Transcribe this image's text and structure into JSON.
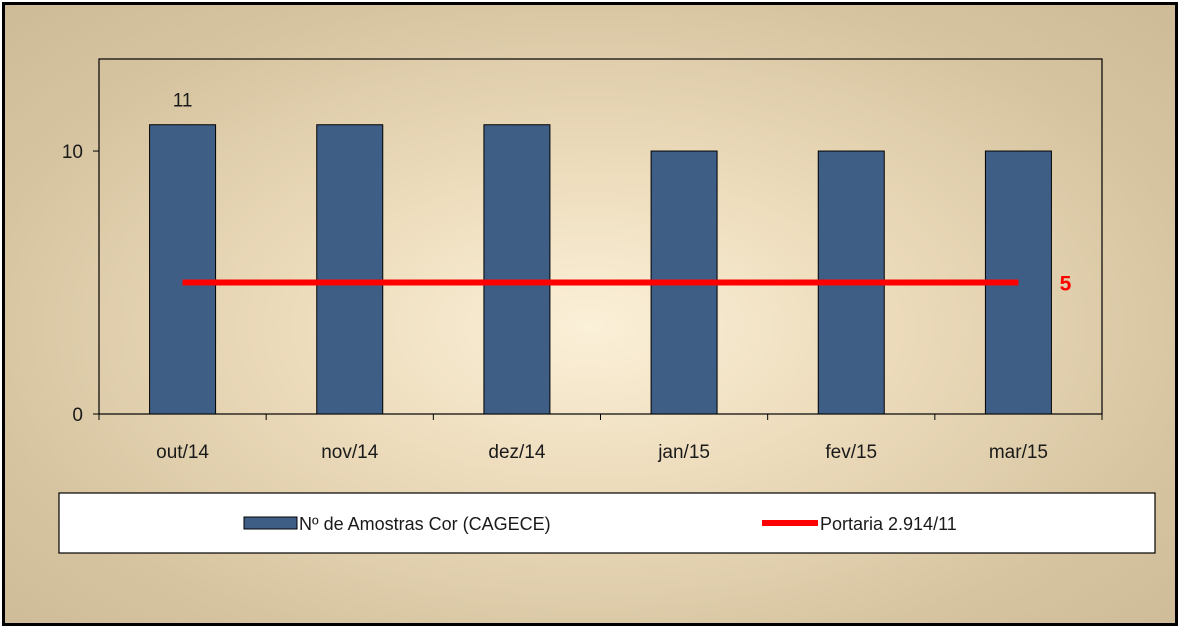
{
  "chart_data": {
    "type": "bar",
    "categories": [
      "out/14",
      "nov/14",
      "dez/14",
      "jan/15",
      "fev/15",
      "mar/15"
    ],
    "series": [
      {
        "name": "Nº de Amostras Cor (CAGECE)",
        "type": "bar",
        "values": [
          11,
          11,
          11,
          10,
          10,
          10
        ],
        "color": "#3f5e86"
      },
      {
        "name": "Portaria 2.914/11",
        "type": "line",
        "values": [
          5,
          5,
          5,
          5,
          5,
          5
        ],
        "color": "#ff0000"
      }
    ],
    "data_labels": [
      {
        "category": "out/14",
        "series": "Nº de Amostras Cor (CAGECE)",
        "text": "11"
      },
      {
        "category": "mar/15",
        "series": "Portaria 2.914/11",
        "text": "5"
      }
    ],
    "yticks": [
      "0",
      "10"
    ],
    "ylim": [
      0,
      13.5
    ],
    "grid": false,
    "legend_position": "bottom"
  }
}
